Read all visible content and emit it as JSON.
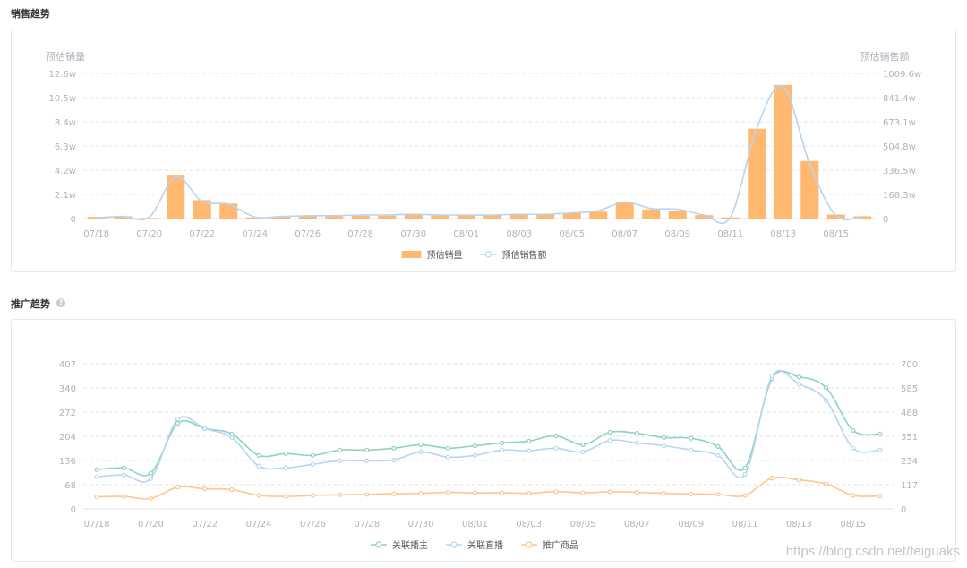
{
  "sections": {
    "sales_title": "销售趋势",
    "promo_title": "推广趋势",
    "help_symbol": "?"
  },
  "watermark": "https://blog.csdn.net/feiguaks",
  "colors": {
    "bar": "#ffb870",
    "light_blue": "#b7d5f2",
    "teal": "#8dd2c2",
    "orange": "#ffc58a",
    "grid": "#e3e3e3",
    "axis_text": "#aeb3bb"
  },
  "chart_data": [
    {
      "type": "bar",
      "categories": [
        "07/18",
        "07/19",
        "07/20",
        "07/21",
        "07/22",
        "07/23",
        "07/24",
        "07/25",
        "07/26",
        "07/27",
        "07/28",
        "07/29",
        "07/30",
        "07/31",
        "08/01",
        "08/02",
        "08/03",
        "08/04",
        "08/05",
        "08/06",
        "08/07",
        "08/08",
        "08/09",
        "08/10",
        "08/11",
        "08/12",
        "08/13",
        "08/14",
        "08/15",
        "08/16"
      ],
      "x_tick_labels": [
        "07/18",
        "07/20",
        "07/22",
        "07/24",
        "07/26",
        "07/28",
        "07/30",
        "08/01",
        "08/03",
        "08/05",
        "08/07",
        "08/09",
        "08/11",
        "08/13",
        "08/15"
      ],
      "left_axis": {
        "title": "预估销量",
        "ticks": [
          "0",
          "2.1w",
          "4.2w",
          "6.3w",
          "8.4w",
          "10.5w",
          "12.6w"
        ],
        "ylim": [
          0,
          12.6
        ]
      },
      "right_axis": {
        "title": "预估销售额",
        "ticks": [
          "0",
          "168.3w",
          "336.5w",
          "504.8w",
          "673.1w",
          "841.4w",
          "1009.6w"
        ],
        "ylim": [
          0,
          1009.6
        ]
      },
      "series": [
        {
          "name": "预估销量",
          "type": "bar",
          "axis": "left",
          "values": [
            0.15,
            0.2,
            0.05,
            3.8,
            1.6,
            1.3,
            0.1,
            0.15,
            0.2,
            0.2,
            0.25,
            0.25,
            0.35,
            0.3,
            0.3,
            0.3,
            0.35,
            0.35,
            0.5,
            0.6,
            1.4,
            0.8,
            0.7,
            0.3,
            0.1,
            7.8,
            11.6,
            5.0,
            0.35,
            0.2
          ]
        },
        {
          "name": "预估销售额",
          "type": "line",
          "axis": "right",
          "values": [
            5,
            15,
            10,
            290,
            120,
            100,
            10,
            15,
            20,
            20,
            25,
            25,
            30,
            25,
            25,
            25,
            30,
            30,
            40,
            55,
            115,
            70,
            65,
            25,
            10,
            630,
            920,
            380,
            20,
            15
          ]
        }
      ],
      "legend": [
        "预估销量",
        "预估销售额"
      ],
      "legend_position": "bottom",
      "grid": true
    },
    {
      "type": "line",
      "categories": [
        "07/18",
        "07/19",
        "07/20",
        "07/21",
        "07/22",
        "07/23",
        "07/24",
        "07/25",
        "07/26",
        "07/27",
        "07/28",
        "07/29",
        "07/30",
        "07/31",
        "08/01",
        "08/02",
        "08/03",
        "08/04",
        "08/05",
        "08/06",
        "08/07",
        "08/08",
        "08/09",
        "08/10",
        "08/11",
        "08/12",
        "08/13",
        "08/14",
        "08/15",
        "08/16"
      ],
      "x_tick_labels": [
        "07/18",
        "07/20",
        "07/22",
        "07/24",
        "07/26",
        "07/28",
        "07/30",
        "08/01",
        "08/03",
        "08/05",
        "08/07",
        "08/09",
        "08/11",
        "08/13",
        "08/15"
      ],
      "left_axis": {
        "ticks": [
          "0",
          "68",
          "136",
          "204",
          "272",
          "340",
          "407"
        ],
        "ylim": [
          0,
          407
        ]
      },
      "right_axis": {
        "ticks": [
          "0",
          "117",
          "234",
          "351",
          "468",
          "585",
          "700"
        ],
        "ylim": [
          0,
          700
        ]
      },
      "series": [
        {
          "name": "关联播主",
          "axis": "left",
          "values": [
            110,
            115,
            100,
            240,
            225,
            210,
            150,
            155,
            150,
            165,
            165,
            170,
            180,
            170,
            177,
            185,
            190,
            205,
            180,
            215,
            212,
            200,
            198,
            175,
            115,
            365,
            370,
            340,
            220,
            210
          ]
        },
        {
          "name": "关联直播",
          "axis": "left",
          "values": [
            90,
            95,
            85,
            252,
            225,
            200,
            120,
            115,
            125,
            135,
            135,
            137,
            160,
            145,
            150,
            165,
            163,
            170,
            160,
            192,
            185,
            177,
            165,
            150,
            97,
            372,
            350,
            305,
            170,
            165
          ]
        },
        {
          "name": "推广商品",
          "axis": "right",
          "values": [
            58,
            60,
            50,
            105,
            97,
            93,
            65,
            60,
            65,
            68,
            70,
            73,
            75,
            80,
            77,
            78,
            75,
            83,
            78,
            82,
            80,
            75,
            72,
            70,
            65,
            148,
            140,
            120,
            65,
            62
          ]
        }
      ],
      "legend": [
        "关联播主",
        "关联直播",
        "推广商品"
      ],
      "legend_position": "bottom",
      "grid": true
    }
  ]
}
